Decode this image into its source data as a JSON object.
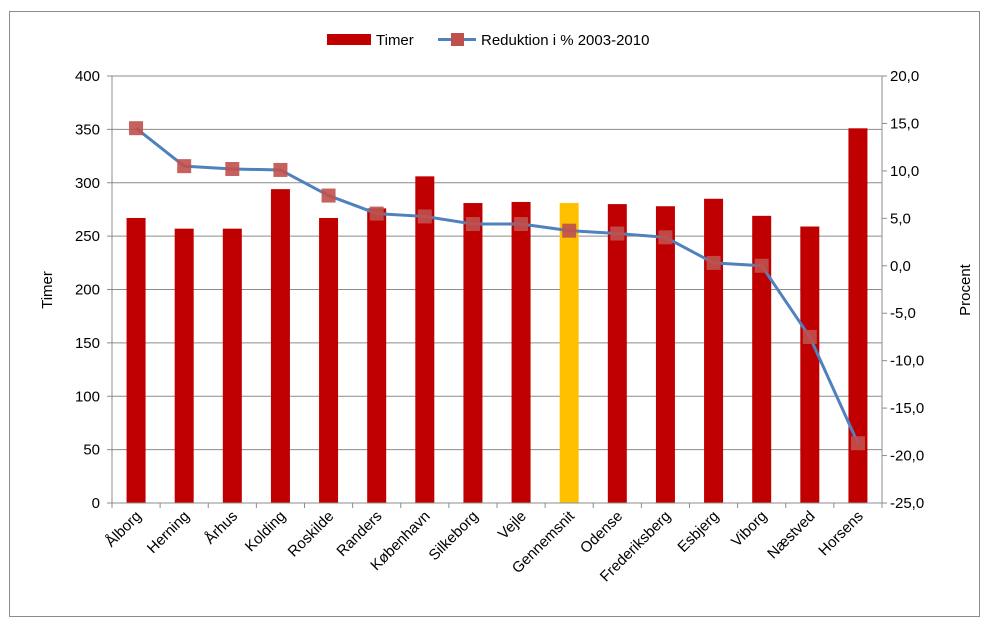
{
  "chart_data": {
    "type": "bar",
    "categories": [
      "Ålborg",
      "Herning",
      "Århus",
      "Kolding",
      "Roskilde",
      "Randers",
      "København",
      "Silkeborg",
      "Vejle",
      "Gennemsnit",
      "Odense",
      "Frederiksberg",
      "Esbjerg",
      "Viborg",
      "Næstved",
      "Horsens"
    ],
    "series": [
      {
        "name": "Timer",
        "type": "bar",
        "axis": "left",
        "values": [
          267,
          257,
          257,
          294,
          267,
          276,
          306,
          281,
          282,
          281,
          280,
          278,
          285,
          269,
          259,
          351
        ],
        "color": "#C00000",
        "highlight": {
          "category": "Gennemsnit",
          "color": "#FFC000"
        }
      },
      {
        "name": "Reduktion i % 2003-2010",
        "type": "line",
        "axis": "right",
        "values": [
          14.5,
          10.5,
          10.2,
          10.1,
          7.4,
          5.5,
          5.2,
          4.4,
          4.4,
          3.7,
          3.4,
          3.0,
          0.3,
          0.0,
          -7.5,
          -18.7
        ],
        "line_color": "#4F81BD",
        "marker_color": "#C0504D"
      }
    ],
    "ylabel": "Timer",
    "y2label": "Procent",
    "ylim": [
      0,
      400
    ],
    "y2lim": [
      -25,
      20
    ],
    "yticks": [
      "0",
      "50",
      "100",
      "150",
      "200",
      "250",
      "300",
      "350",
      "400"
    ],
    "y2ticks": [
      "-25,0",
      "-20,0",
      "-15,0",
      "-10,0",
      "-5,0",
      "0,0",
      "5,0",
      "10,0",
      "15,0",
      "20,0"
    ],
    "grid": true,
    "legend": "top-center"
  }
}
